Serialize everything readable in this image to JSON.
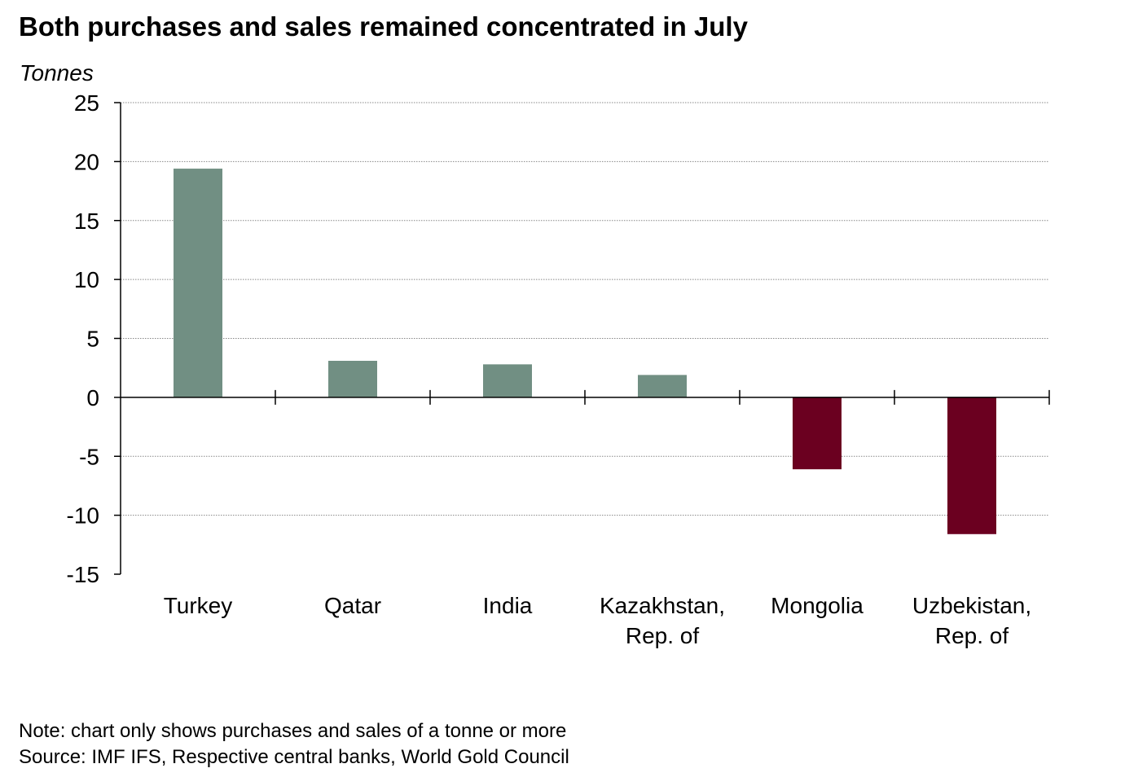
{
  "title": "Both purchases and sales remained concentrated in July",
  "note": "Note: chart only shows purchases and sales of a tonne or more",
  "source": "Source: IMF IFS, Respective central banks, World Gold Council",
  "colors": {
    "positive": "#718F83",
    "negative": "#6B0020",
    "gridline": "#888888",
    "axis": "#000000"
  },
  "chart_data": {
    "type": "bar",
    "ylabel": "Tonnes",
    "xlabel": "",
    "ylim": [
      -15,
      25
    ],
    "yticks": [
      25,
      20,
      15,
      10,
      5,
      0,
      -5,
      -10,
      -15
    ],
    "grid": true,
    "legend": "none",
    "categories": [
      [
        "Turkey"
      ],
      [
        "Qatar"
      ],
      [
        "India"
      ],
      [
        "Kazakhstan,",
        "Rep. of"
      ],
      [
        "Mongolia"
      ],
      [
        "Uzbekistan,",
        "Rep. of"
      ]
    ],
    "values": [
      19.4,
      3.1,
      2.8,
      1.9,
      -6.1,
      -11.6
    ]
  }
}
